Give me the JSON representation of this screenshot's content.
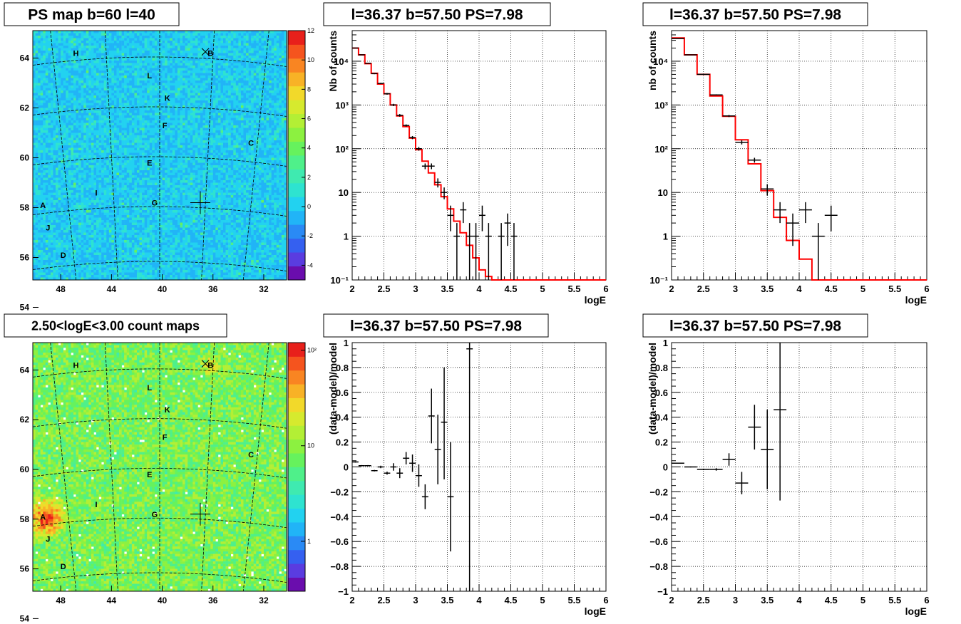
{
  "colors": {
    "data": "#000000",
    "model": "#ff0000",
    "grid": "#000000"
  },
  "markers": [
    "A",
    "B",
    "C",
    "D",
    "E",
    "F",
    "G",
    "H",
    "I",
    "J",
    "K",
    "L"
  ],
  "chart_data": [
    {
      "type": "heatmap",
      "title": "PS map b=60 l=40",
      "xticks": [
        "48",
        "44",
        "40",
        "36",
        "32"
      ],
      "yticks": [
        "64",
        "62",
        "60",
        "58",
        "56",
        "54"
      ],
      "colorbar": {
        "scale": "linear",
        "ticks": [
          "12",
          "10",
          "8",
          "6",
          "4",
          "2",
          "0",
          "-2",
          "-4"
        ],
        "range": [
          -5,
          12
        ]
      },
      "source_positions": [
        {
          "label": "H",
          "l": 46.5,
          "b": 64.3
        },
        {
          "label": "B",
          "l": 35.6,
          "b": 64.3
        },
        {
          "label": "L",
          "l": 41.8,
          "b": 63.3
        },
        {
          "label": "K",
          "l": 40.8,
          "b": 62.2
        },
        {
          "label": "F",
          "l": 40.6,
          "b": 60.9
        },
        {
          "label": "C",
          "l": 32.8,
          "b": 60.1
        },
        {
          "label": "E",
          "l": 42.0,
          "b": 59.1
        },
        {
          "label": "I",
          "l": 44.7,
          "b": 57.6
        },
        {
          "label": "G",
          "l": 41.5,
          "b": 57.0
        },
        {
          "label": "A",
          "l": 50.5,
          "b": 56.9
        },
        {
          "label": "J",
          "l": 49.8,
          "b": 56.0
        },
        {
          "label": "D",
          "l": 48.4,
          "b": 54.8
        }
      ]
    },
    {
      "type": "line",
      "title": "l=36.37 b=57.50 PS=7.98",
      "xlabel": "logE",
      "ylabel": "Nb of counts",
      "xlim": [
        2,
        6
      ],
      "ylim": [
        0.1,
        50000
      ],
      "yscale": "log",
      "grid": true,
      "xticks": [
        "2",
        "2.5",
        "3",
        "3.5",
        "4",
        "4.5",
        "5",
        "5.5",
        "6"
      ],
      "yticks": [
        "10⁻¹",
        "1",
        "10",
        "10²",
        "10³",
        "10⁴"
      ],
      "series": [
        {
          "kind": "step",
          "color": "#ff0000",
          "edges": [
            2.0,
            2.1,
            2.2,
            2.3,
            2.4,
            2.5,
            2.6,
            2.7,
            2.8,
            2.9,
            3.0,
            3.1,
            3.2,
            3.3,
            3.4,
            3.5,
            3.6,
            3.7,
            3.8,
            3.9,
            4.0,
            4.1,
            4.2,
            6.0
          ],
          "values": [
            20000,
            14000,
            8800,
            5300,
            3000,
            1800,
            1000,
            560,
            320,
            175,
            95,
            52,
            28,
            15,
            8,
            4.2,
            2.2,
            1.2,
            0.62,
            0.32,
            0.17,
            0.12,
            0.1
          ]
        },
        {
          "kind": "points",
          "color": "#000000",
          "points": [
            {
              "x": 2.05,
              "y": 20000,
              "lo": 19700,
              "hi": 20300
            },
            {
              "x": 2.15,
              "y": 14000,
              "lo": 13800,
              "hi": 14200
            },
            {
              "x": 2.25,
              "y": 9000,
              "lo": 8800,
              "hi": 9200
            },
            {
              "x": 2.35,
              "y": 5200,
              "lo": 5050,
              "hi": 5350
            },
            {
              "x": 2.45,
              "y": 3100,
              "lo": 3000,
              "hi": 3200
            },
            {
              "x": 2.55,
              "y": 1800,
              "lo": 1720,
              "hi": 1880
            },
            {
              "x": 2.65,
              "y": 1000,
              "lo": 940,
              "hi": 1060
            },
            {
              "x": 2.75,
              "y": 580,
              "lo": 540,
              "hi": 620
            },
            {
              "x": 2.85,
              "y": 340,
              "lo": 320,
              "hi": 360
            },
            {
              "x": 2.95,
              "y": 180,
              "lo": 165,
              "hi": 195
            },
            {
              "x": 3.05,
              "y": 100,
              "lo": 90,
              "hi": 110
            },
            {
              "x": 3.15,
              "y": 40,
              "lo": 34,
              "hi": 46
            },
            {
              "x": 3.25,
              "y": 40,
              "lo": 34,
              "hi": 46
            },
            {
              "x": 3.35,
              "y": 17,
              "lo": 13,
              "hi": 21
            },
            {
              "x": 3.45,
              "y": 10,
              "lo": 7,
              "hi": 13
            },
            {
              "x": 3.55,
              "y": 3,
              "lo": 1.3,
              "hi": 5
            },
            {
              "x": 3.65,
              "y": 1,
              "lo": 0.1,
              "hi": 2
            },
            {
              "x": 3.75,
              "y": 4,
              "lo": 2,
              "hi": 6
            },
            {
              "x": 3.85,
              "y": 1,
              "lo": 0.1,
              "hi": 2
            },
            {
              "x": 3.95,
              "y": 1,
              "lo": 0.1,
              "hi": 2
            },
            {
              "x": 4.05,
              "y": 3,
              "lo": 1.3,
              "hi": 5
            },
            {
              "x": 4.15,
              "y": 1,
              "lo": 0.1,
              "hi": 2
            },
            {
              "x": 4.35,
              "y": 1,
              "lo": 0.1,
              "hi": 2
            },
            {
              "x": 4.45,
              "y": 2,
              "lo": 0.6,
              "hi": 3.3
            },
            {
              "x": 4.55,
              "y": 1,
              "lo": 0.1,
              "hi": 2
            }
          ]
        }
      ]
    },
    {
      "type": "line",
      "title": "l=36.37 b=57.50 PS=7.98",
      "xlabel": "logE",
      "ylabel": "nb of counts",
      "xlim": [
        2,
        6
      ],
      "ylim": [
        0.1,
        50000
      ],
      "yscale": "log",
      "grid": true,
      "xticks": [
        "2",
        "2.5",
        "3",
        "3.5",
        "4",
        "4.5",
        "5",
        "5.5",
        "6"
      ],
      "yticks": [
        "10⁻¹",
        "1",
        "10",
        "10²",
        "10³",
        "10⁴"
      ],
      "series": [
        {
          "kind": "step",
          "color": "#ff0000",
          "edges": [
            2.0,
            2.2,
            2.4,
            2.6,
            2.8,
            3.0,
            3.2,
            3.4,
            3.6,
            3.8,
            4.0,
            4.2,
            6.0
          ],
          "values": [
            34000,
            14000,
            5000,
            1600,
            550,
            160,
            45,
            11,
            2.7,
            0.8,
            0.3,
            0.1
          ]
        },
        {
          "kind": "points",
          "color": "#000000",
          "points": [
            {
              "x": 2.1,
              "y": 33000,
              "lo": 32600,
              "hi": 33400
            },
            {
              "x": 2.3,
              "y": 14000,
              "lo": 13800,
              "hi": 14200
            },
            {
              "x": 2.5,
              "y": 5000,
              "lo": 4900,
              "hi": 5100
            },
            {
              "x": 2.7,
              "y": 1700,
              "lo": 1650,
              "hi": 1750
            },
            {
              "x": 2.9,
              "y": 560,
              "lo": 530,
              "hi": 590
            },
            {
              "x": 3.1,
              "y": 140,
              "lo": 125,
              "hi": 155
            },
            {
              "x": 3.3,
              "y": 55,
              "lo": 48,
              "hi": 62
            },
            {
              "x": 3.5,
              "y": 12,
              "lo": 8.5,
              "hi": 15.5
            },
            {
              "x": 3.7,
              "y": 4,
              "lo": 2,
              "hi": 6
            },
            {
              "x": 3.9,
              "y": 2,
              "lo": 0.6,
              "hi": 3.3
            },
            {
              "x": 4.1,
              "y": 4,
              "lo": 2,
              "hi": 6
            },
            {
              "x": 4.3,
              "y": 1,
              "lo": 0.1,
              "hi": 2
            },
            {
              "x": 4.5,
              "y": 3,
              "lo": 1.3,
              "hi": 5
            }
          ]
        }
      ]
    },
    {
      "type": "heatmap",
      "title": "2.50<logE<3.00 count maps",
      "xticks": [
        "48",
        "44",
        "40",
        "36",
        "32"
      ],
      "yticks": [
        "64",
        "62",
        "60",
        "58",
        "56",
        "54"
      ],
      "colorbar": {
        "scale": "log",
        "ticks": [
          "10²",
          "10",
          "1"
        ],
        "range": [
          0.3,
          120
        ]
      },
      "source_positions": "same as PS map"
    },
    {
      "type": "scatter",
      "title": "l=36.37 b=57.50 PS=7.98",
      "xlabel": "logE",
      "ylabel": "(data-model)/model",
      "xlim": [
        2,
        6
      ],
      "ylim": [
        -1,
        1
      ],
      "grid": true,
      "xticks": [
        "2",
        "2.5",
        "3",
        "3.5",
        "4",
        "4.5",
        "5",
        "5.5",
        "6"
      ],
      "yticks": [
        "1",
        "0.8",
        "0.6",
        "0.4",
        "0.2",
        "0",
        "−0.2",
        "−0.4",
        "−0.6",
        "−0.8",
        "−1"
      ],
      "points": [
        {
          "x": 2.05,
          "y": 0.04,
          "lo": 0.035,
          "hi": 0.045
        },
        {
          "x": 2.15,
          "y": 0.01,
          "lo": 0.005,
          "hi": 0.015
        },
        {
          "x": 2.25,
          "y": 0.01,
          "lo": 0.005,
          "hi": 0.015
        },
        {
          "x": 2.35,
          "y": -0.03,
          "lo": -0.036,
          "hi": -0.024
        },
        {
          "x": 2.45,
          "y": 0.0,
          "lo": -0.01,
          "hi": 0.01
        },
        {
          "x": 2.55,
          "y": -0.05,
          "lo": -0.062,
          "hi": -0.038
        },
        {
          "x": 2.65,
          "y": 0.0,
          "lo": -0.03,
          "hi": 0.03
        },
        {
          "x": 2.75,
          "y": -0.05,
          "lo": -0.09,
          "hi": -0.01
        },
        {
          "x": 2.85,
          "y": 0.07,
          "lo": 0.02,
          "hi": 0.12
        },
        {
          "x": 2.95,
          "y": 0.03,
          "lo": -0.04,
          "hi": 0.1
        },
        {
          "x": 3.05,
          "y": -0.07,
          "lo": -0.16,
          "hi": 0.02
        },
        {
          "x": 3.15,
          "y": -0.24,
          "lo": -0.34,
          "hi": -0.14
        },
        {
          "x": 3.25,
          "y": 0.41,
          "lo": 0.19,
          "hi": 0.63
        },
        {
          "x": 3.35,
          "y": 0.14,
          "lo": -0.14,
          "hi": 0.42
        },
        {
          "x": 3.45,
          "y": 0.36,
          "lo": -0.1,
          "hi": 0.8
        },
        {
          "x": 3.55,
          "y": -0.24,
          "lo": -0.68,
          "hi": 0.2
        },
        {
          "x": 3.85,
          "y": 0.95,
          "lo": -1.0,
          "hi": 1.0
        }
      ]
    },
    {
      "type": "scatter",
      "title": "l=36.37 b=57.50 PS=7.98",
      "xlabel": "logE",
      "ylabel": "(data-model)/model",
      "xlim": [
        2,
        6
      ],
      "ylim": [
        -1,
        1
      ],
      "grid": true,
      "xticks": [
        "2",
        "2.5",
        "3",
        "3.5",
        "4",
        "4.5",
        "5",
        "5.5",
        "6"
      ],
      "yticks": [
        "1",
        "0.8",
        "0.6",
        "0.4",
        "0.2",
        "0",
        "−0.2",
        "−0.4",
        "−0.6",
        "−0.8",
        "−1"
      ],
      "points": [
        {
          "x": 2.1,
          "y": 0.03,
          "lo": 0.026,
          "hi": 0.034
        },
        {
          "x": 2.3,
          "y": 0.0,
          "lo": -0.004,
          "hi": 0.004
        },
        {
          "x": 2.5,
          "y": -0.02,
          "lo": -0.026,
          "hi": -0.014
        },
        {
          "x": 2.7,
          "y": -0.02,
          "lo": -0.03,
          "hi": -0.01
        },
        {
          "x": 2.9,
          "y": 0.06,
          "lo": 0.01,
          "hi": 0.11
        },
        {
          "x": 3.1,
          "y": -0.13,
          "lo": -0.22,
          "hi": -0.04
        },
        {
          "x": 3.3,
          "y": 0.32,
          "lo": 0.14,
          "hi": 0.5
        },
        {
          "x": 3.5,
          "y": 0.14,
          "lo": -0.18,
          "hi": 0.46
        },
        {
          "x": 3.7,
          "y": 0.46,
          "lo": -0.27,
          "hi": 1.0
        }
      ]
    }
  ]
}
